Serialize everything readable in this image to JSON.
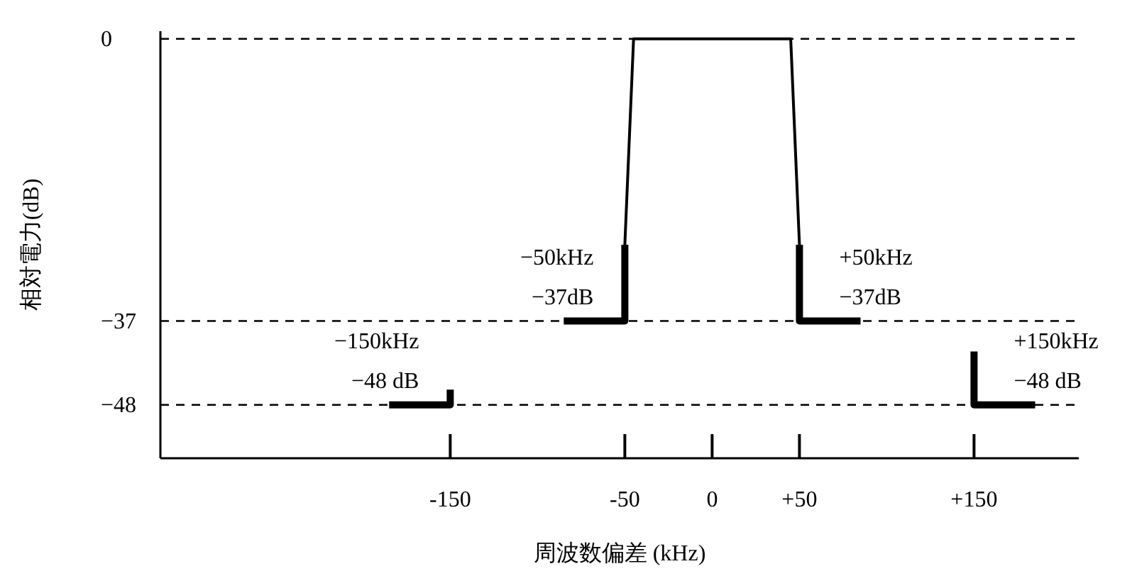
{
  "chart_data": {
    "type": "line",
    "xlabel": "周波数偏差 (kHz)",
    "ylabel": "相対電力(dB)",
    "xlim": [
      -316,
      210
    ],
    "ylim": [
      -55,
      1
    ],
    "xticks": [
      {
        "value": -150,
        "label": "-150"
      },
      {
        "value": -50,
        "label": "-50"
      },
      {
        "value": 0,
        "label": "0"
      },
      {
        "value": 50,
        "label": "+50"
      },
      {
        "value": 150,
        "label": "+150"
      }
    ],
    "yticks": [
      {
        "value": 0,
        "label": "0"
      },
      {
        "value": -37,
        "label": "−37"
      },
      {
        "value": -48,
        "label": "−48"
      }
    ],
    "grid": false,
    "line_style": "solid",
    "marker": "none",
    "ref_lines": [
      {
        "axis": "y",
        "value": 0,
        "line_style": "dashed",
        "color": "#000000"
      },
      {
        "axis": "y",
        "value": -37,
        "line_style": "dashed",
        "color": "#000000"
      },
      {
        "axis": "y",
        "value": -48,
        "line_style": "dashed",
        "color": "#000000"
      }
    ],
    "series": [
      {
        "color": "#000000",
        "x": [
          -50,
          -45,
          45,
          50
        ],
        "values": [
          -27,
          0,
          0,
          -27
        ]
      },
      {
        "color": "#000000",
        "x": [
          -85,
          -50,
          -50
        ],
        "values": [
          -37,
          -37,
          -27
        ]
      },
      {
        "color": "#000000",
        "x": [
          50,
          50,
          85
        ],
        "values": [
          -27,
          -37,
          -37
        ]
      },
      {
        "color": "#000000",
        "x": [
          -185,
          -150,
          -150
        ],
        "values": [
          -48,
          -48,
          -46
        ]
      },
      {
        "color": "#000000",
        "x": [
          150,
          150,
          185
        ],
        "values": [
          -41,
          -48,
          -48
        ]
      }
    ],
    "annotations": [
      {
        "text": "−50kHz\n−37dB",
        "x": -50,
        "y": -37
      },
      {
        "text": "+50kHz\n−37dB",
        "x": 50,
        "y": -37
      },
      {
        "text": "−150kHz\n−48  dB",
        "x": -150,
        "y": -48
      },
      {
        "text": "+150kHz\n−48  dB",
        "x": 150,
        "y": -48
      }
    ]
  }
}
